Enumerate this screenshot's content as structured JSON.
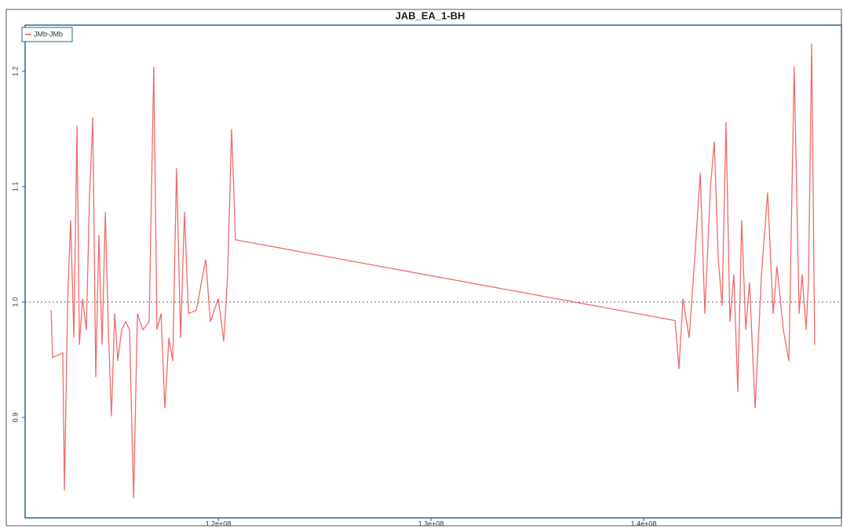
{
  "chart_data": {
    "type": "line",
    "title": "JAB_EA_1-BH",
    "x": [
      112140000,
      112210000,
      112690000,
      112770000,
      112920000,
      113060000,
      113210000,
      113360000,
      113470000,
      113620000,
      113800000,
      113950000,
      114100000,
      114240000,
      114390000,
      114540000,
      114690000,
      114830000,
      114980000,
      115130000,
      115280000,
      115460000,
      115650000,
      115830000,
      116020000,
      116200000,
      116460000,
      116750000,
      116970000,
      117120000,
      117310000,
      117490000,
      117680000,
      117860000,
      118040000,
      118230000,
      118410000,
      118600000,
      118970000,
      119410000,
      119630000,
      120000000,
      120260000,
      120440000,
      120630000,
      120810000,
      141480000,
      141660000,
      141850000,
      142140000,
      142400000,
      142660000,
      142880000,
      143140000,
      143320000,
      143510000,
      143690000,
      143870000,
      144060000,
      144240000,
      144430000,
      144610000,
      144800000,
      144980000,
      145240000,
      145540000,
      145830000,
      146090000,
      146270000,
      146570000,
      146830000,
      147080000,
      147310000,
      147450000,
      147640000,
      147750000,
      147900000,
      148040000
    ],
    "series": [
      {
        "name": "JMb-JMb",
        "color": "#f05050",
        "values": [
          0.993,
          0.952,
          0.956,
          0.837,
          1.003,
          1.071,
          0.969,
          1.153,
          0.963,
          1.003,
          0.976,
          1.092,
          1.16,
          0.935,
          1.058,
          0.963,
          1.078,
          0.976,
          0.901,
          0.99,
          0.949,
          0.976,
          0.983,
          0.976,
          0.83,
          0.99,
          0.976,
          0.983,
          1.204,
          0.976,
          0.99,
          0.908,
          0.969,
          0.949,
          1.116,
          0.969,
          1.078,
          0.99,
          0.993,
          1.037,
          0.983,
          1.003,
          0.966,
          1.024,
          1.15,
          1.054,
          0.984,
          0.942,
          1.003,
          0.969,
          1.037,
          1.112,
          0.99,
          1.099,
          1.139,
          1.037,
          0.997,
          1.156,
          0.983,
          1.024,
          0.922,
          1.071,
          0.976,
          1.017,
          0.908,
          1.024,
          1.095,
          0.99,
          1.031,
          0.976,
          0.949,
          1.204,
          0.99,
          1.024,
          0.976,
          1.017,
          1.224,
          0.963
        ]
      }
    ],
    "xlim": [
      110920000,
      149300000
    ],
    "ylim": [
      0.813,
      1.24
    ],
    "xticks": [
      {
        "value": 120000000,
        "label": "1.2e+08"
      },
      {
        "value": 130000000,
        "label": "1.3e+08"
      },
      {
        "value": 140000000,
        "label": "1.4e+08"
      }
    ],
    "yticks": [
      {
        "value": 0.9,
        "label": "0.9"
      },
      {
        "value": 1,
        "label": "1.0"
      },
      {
        "value": 1.1,
        "label": "1.1"
      },
      {
        "value": 1.2,
        "label": "1.2"
      }
    ],
    "reference_line": 1,
    "legend": "upper left"
  }
}
